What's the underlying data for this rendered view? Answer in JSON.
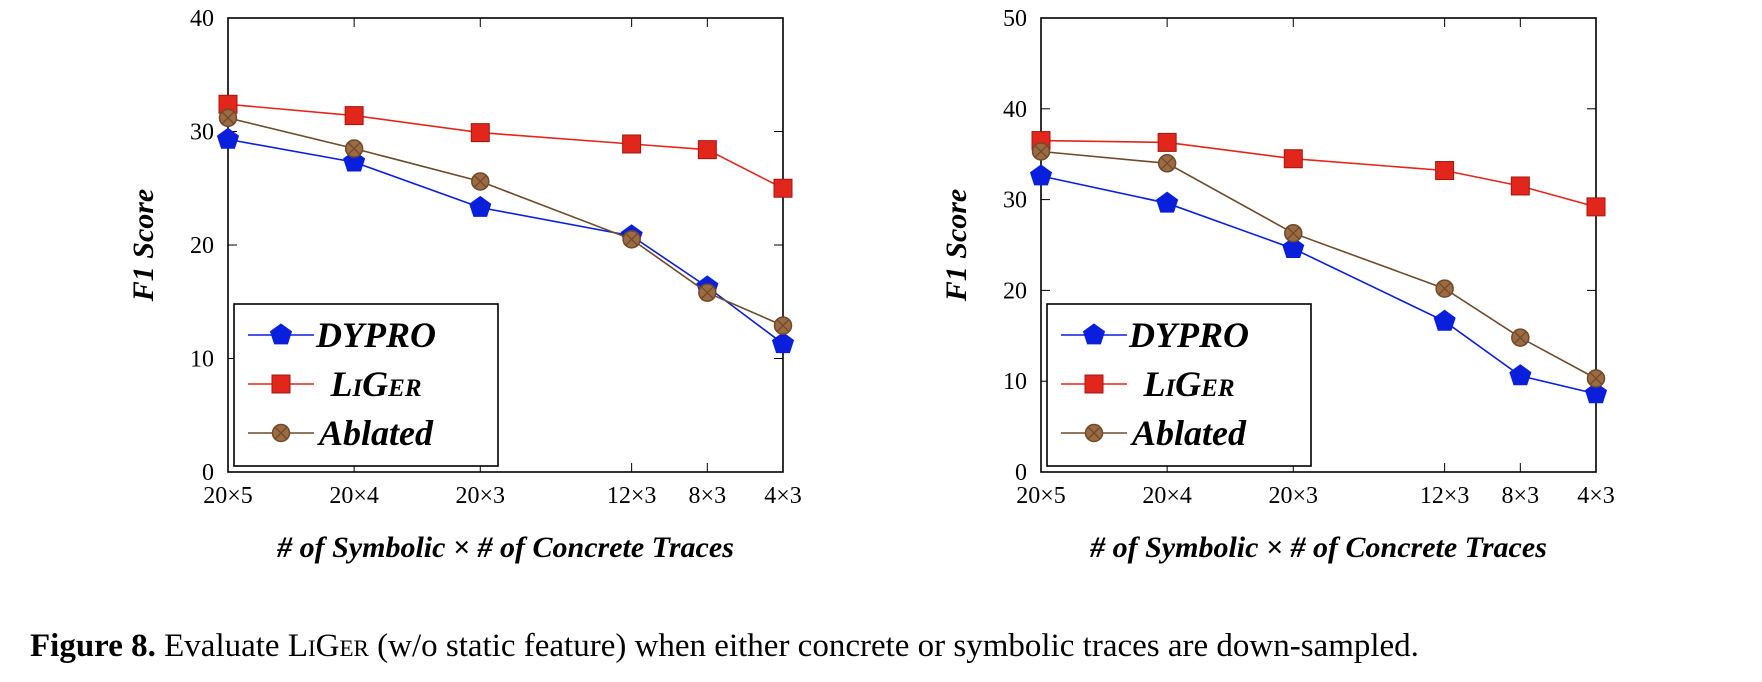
{
  "chart_data": [
    {
      "type": "line",
      "categories": [
        "20×5",
        "20×4",
        "20×3",
        "12×3",
        "8×3",
        "4×3"
      ],
      "x": [
        100,
        80,
        60,
        36,
        24,
        12
      ],
      "xlabel": "# of Symbolic × # of Concrete Traces",
      "ylabel": "F1 Score",
      "ylim": [
        0,
        40
      ],
      "yticks": [
        0,
        10,
        20,
        30,
        40
      ],
      "legend_position": "bottom-left",
      "series": [
        {
          "name": "DYPRO",
          "color": "#0a1fdc",
          "marker": "pentagon",
          "values": [
            29.3,
            27.3,
            23.3,
            20.8,
            16.3,
            11.3
          ]
        },
        {
          "name": "LiGer",
          "color": "#e2261c",
          "marker": "square",
          "values": [
            32.4,
            31.4,
            29.9,
            28.9,
            28.4,
            25.0
          ]
        },
        {
          "name": "Ablated",
          "color": "#6e4b2a",
          "fill": "#9c6b43",
          "marker": "circle-x",
          "values": [
            31.2,
            28.5,
            25.6,
            20.5,
            15.8,
            12.9
          ]
        }
      ]
    },
    {
      "type": "line",
      "categories": [
        "20×5",
        "20×4",
        "20×3",
        "12×3",
        "8×3",
        "4×3"
      ],
      "x": [
        100,
        80,
        60,
        36,
        24,
        12
      ],
      "xlabel": "# of Symbolic × # of Concrete Traces",
      "ylabel": "F1 Score",
      "ylim": [
        0,
        50
      ],
      "yticks": [
        0,
        10,
        20,
        30,
        40,
        50
      ],
      "legend_position": "bottom-left",
      "series": [
        {
          "name": "DYPRO",
          "color": "#0a1fdc",
          "marker": "pentagon",
          "values": [
            32.6,
            29.6,
            24.6,
            16.6,
            10.6,
            8.6
          ]
        },
        {
          "name": "LiGer",
          "color": "#e2261c",
          "marker": "square",
          "values": [
            36.5,
            36.3,
            34.5,
            33.2,
            31.5,
            29.2
          ]
        },
        {
          "name": "Ablated",
          "color": "#6e4b2a",
          "fill": "#9c6b43",
          "marker": "circle-x",
          "values": [
            35.3,
            34.0,
            26.3,
            20.2,
            14.8,
            10.3
          ]
        }
      ]
    }
  ],
  "caption": {
    "label": "Figure 8.",
    "pre": " Evaluate ",
    "name": "LiGer",
    "post": " (w/o static feature) when either concrete or symbolic traces are down-sampled."
  }
}
